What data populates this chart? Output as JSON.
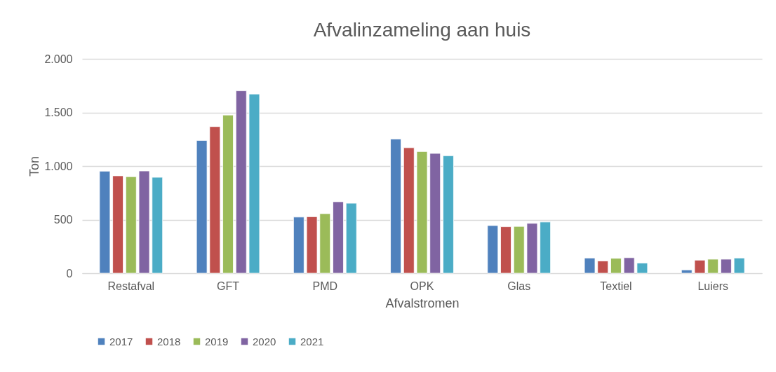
{
  "chart_data": {
    "type": "bar",
    "title": "Afvalinzameling aan huis",
    "xlabel": "Afvalstromen",
    "ylabel": "Ton",
    "categories": [
      "Restafval",
      "GFT",
      "PMD",
      "OPK",
      "Glas",
      "Textiel",
      "Luiers"
    ],
    "series": [
      {
        "name": "2017",
        "color": "#4f81bd",
        "values": [
          952,
          1239,
          524,
          1252,
          445,
          142,
          31
        ]
      },
      {
        "name": "2018",
        "color": "#c0504d",
        "values": [
          909,
          1368,
          527,
          1171,
          434,
          114,
          122
        ]
      },
      {
        "name": "2019",
        "color": "#9bbb59",
        "values": [
          901,
          1476,
          556,
          1135,
          437,
          139,
          131
        ]
      },
      {
        "name": "2020",
        "color": "#8064a2",
        "values": [
          954,
          1702,
          667,
          1118,
          465,
          145,
          131
        ]
      },
      {
        "name": "2021",
        "color": "#4bacc6",
        "values": [
          895,
          1672,
          653,
          1096,
          478,
          95,
          142
        ]
      }
    ],
    "ylim": [
      0,
      2000
    ],
    "yticks": [
      0,
      500,
      {
        "value": 1000,
        "label": "1.000"
      },
      {
        "value": 1500,
        "label": "1.500"
      },
      {
        "value": 2000,
        "label": "2.000"
      }
    ],
    "grid": "y",
    "legend": "bottom"
  }
}
